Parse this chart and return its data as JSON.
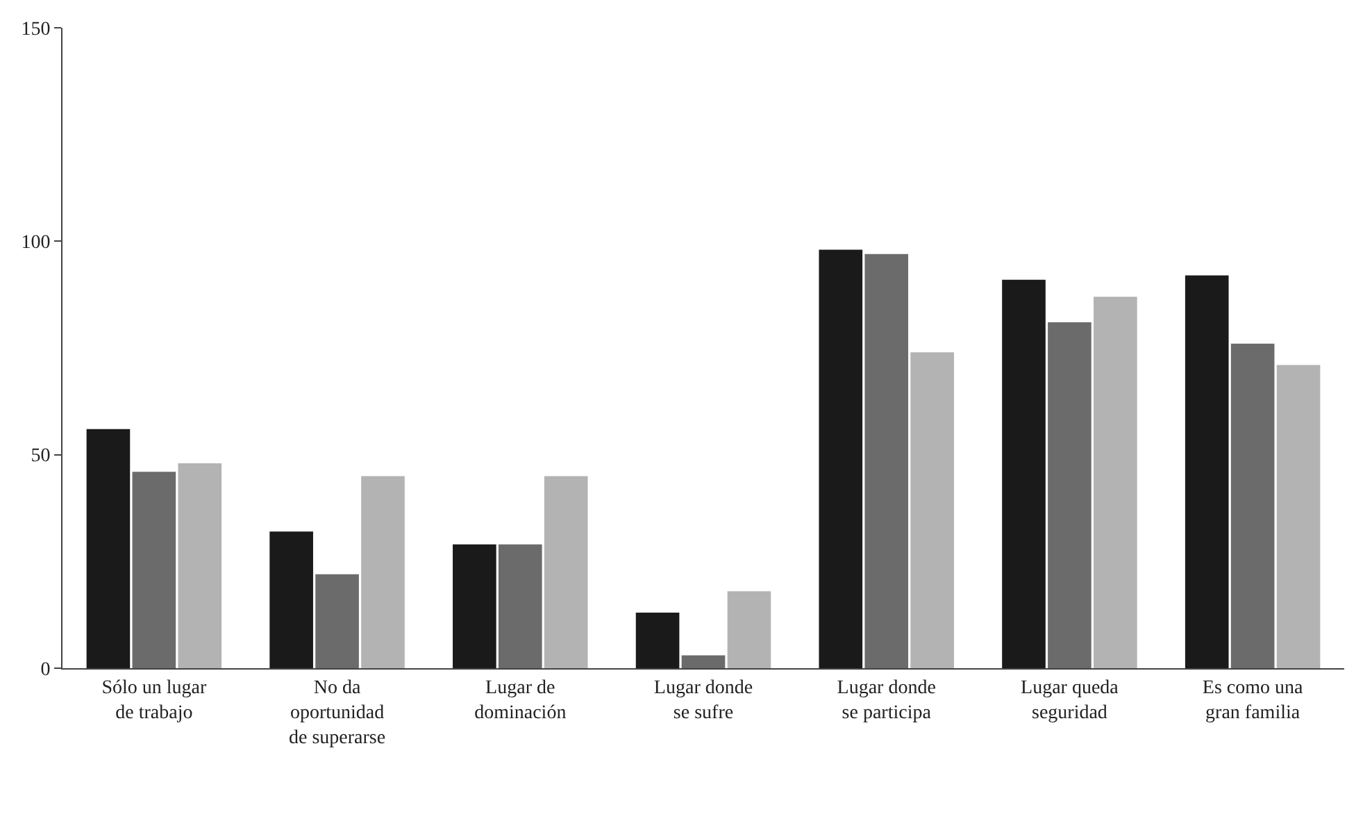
{
  "chart_data": {
    "type": "bar",
    "categories": [
      "Sólo un lugar\nde trabajo",
      "No da\noportunidad\nde superarse",
      "Lugar de\ndominación",
      "Lugar donde\nse sufre",
      "Lugar donde\nse participa",
      "Lugar queda\nseguridad",
      "Es como una\ngran familia"
    ],
    "series": [
      {
        "color": "#1a1a1a",
        "values": [
          56,
          32,
          29,
          13,
          98,
          91,
          92
        ]
      },
      {
        "color": "#6b6b6b",
        "values": [
          46,
          22,
          29,
          3,
          97,
          81,
          76
        ]
      },
      {
        "color": "#b3b3b3",
        "values": [
          48,
          45,
          45,
          18,
          74,
          87,
          71
        ]
      }
    ],
    "ylim": [
      0,
      150
    ],
    "yticks": [
      0,
      50,
      100,
      150
    ]
  }
}
